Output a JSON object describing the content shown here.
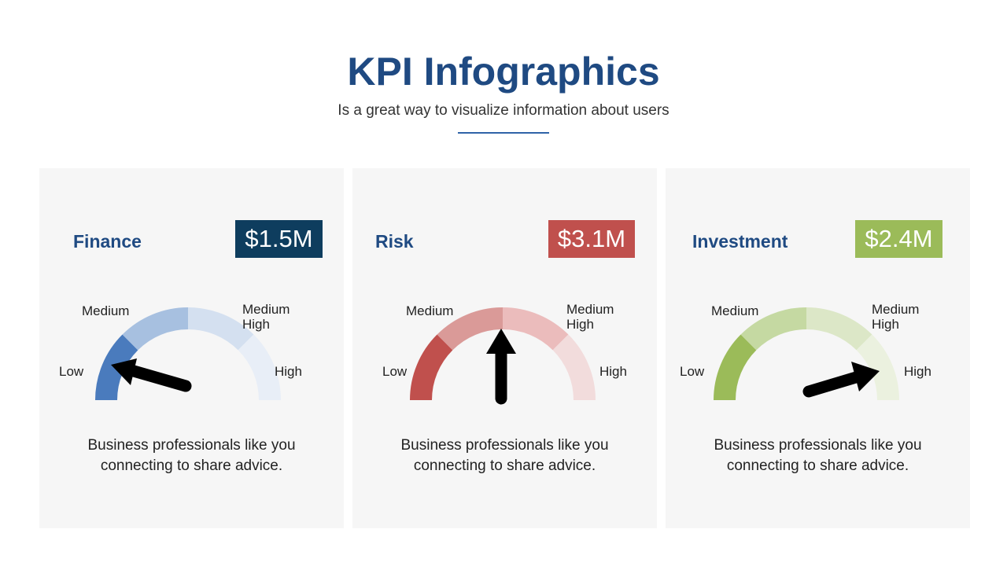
{
  "header": {
    "title": "KPI Infographics",
    "subtitle": "Is a great way to visualize information about users"
  },
  "cards": [
    {
      "title": "Finance",
      "value": "$1.5M",
      "badge_color": "#0e3d5e",
      "segment_colors": [
        "#4a7bbd",
        "#a7c0e0",
        "#d4e0f0",
        "#e8eef7"
      ],
      "needle_segment": "Low",
      "labels": {
        "low": "Low",
        "medium": "Medium",
        "medium_high_1": "Medium",
        "medium_high_2": "High",
        "high": "High"
      },
      "description_line1": "Business professionals like you",
      "description_line2": "connecting to share advice."
    },
    {
      "title": "Risk",
      "value": "$3.1M",
      "badge_color": "#c0504d",
      "segment_colors": [
        "#c0504d",
        "#da9a98",
        "#ebbcbc",
        "#f2dcdc"
      ],
      "needle_segment": "Medium",
      "labels": {
        "low": "Low",
        "medium": "Medium",
        "medium_high_1": "Medium",
        "medium_high_2": "High",
        "high": "High"
      },
      "description_line1": "Business professionals like you",
      "description_line2": "connecting to share advice."
    },
    {
      "title": "Investment",
      "value": "$2.4M",
      "badge_color": "#9bbb59",
      "segment_colors": [
        "#9bbb59",
        "#c5d9a2",
        "#dce7c7",
        "#ebf1df"
      ],
      "needle_segment": "High",
      "labels": {
        "low": "Low",
        "medium": "Medium",
        "medium_high_1": "Medium",
        "medium_high_2": "High",
        "high": "High"
      },
      "description_line1": "Business professionals like you",
      "description_line2": "connecting to share advice."
    }
  ]
}
